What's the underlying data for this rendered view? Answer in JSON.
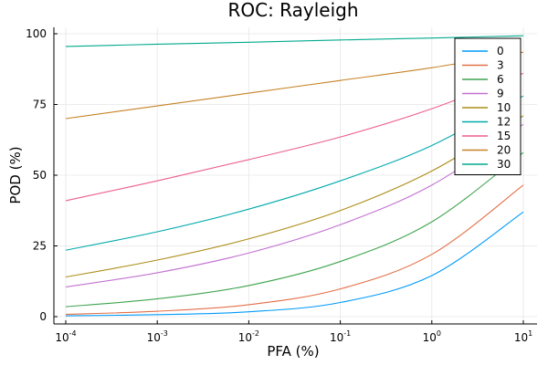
{
  "chart_data": {
    "type": "line",
    "title": "ROC: Rayleigh",
    "xlabel": "PFA (%)",
    "ylabel": "POD (%)",
    "x_scale": "log",
    "xlim": [
      0.0001,
      10
    ],
    "ylim": [
      0,
      100
    ],
    "x_ticks": [
      {
        "value": 0.0001,
        "base": "10",
        "exp": "-4"
      },
      {
        "value": 0.001,
        "base": "10",
        "exp": "-3"
      },
      {
        "value": 0.01,
        "base": "10",
        "exp": "-2"
      },
      {
        "value": 0.1,
        "base": "10",
        "exp": "-1"
      },
      {
        "value": 1,
        "base": "10",
        "exp": "0"
      },
      {
        "value": 10,
        "base": "10",
        "exp": "1"
      }
    ],
    "y_ticks": [
      0,
      25,
      50,
      75,
      100
    ],
    "grid": true,
    "legend_position": "top-right",
    "x": [
      0.0001,
      0.001,
      0.01,
      0.1,
      1,
      10
    ],
    "series": [
      {
        "name": "0",
        "color": "#009AFA",
        "values": [
          0.3,
          0.7,
          1.7,
          5.0,
          14.5,
          37.0
        ]
      },
      {
        "name": "3",
        "color": "#E36F47",
        "values": [
          0.8,
          1.9,
          4.2,
          9.8,
          22.0,
          46.5
        ]
      },
      {
        "name": "6",
        "color": "#3EA44E",
        "values": [
          3.5,
          6.3,
          11.0,
          19.5,
          33.5,
          58.0
        ]
      },
      {
        "name": "9",
        "color": "#C371D2",
        "values": [
          10.5,
          15.5,
          22.5,
          32.5,
          46.5,
          68.0
        ]
      },
      {
        "name": "10",
        "color": "#AC8D18",
        "values": [
          14.0,
          20.0,
          27.5,
          37.5,
          51.5,
          71.0
        ]
      },
      {
        "name": "12",
        "color": "#00A9AD",
        "values": [
          23.5,
          30.0,
          38.0,
          48.0,
          60.5,
          78.0
        ]
      },
      {
        "name": "15",
        "color": "#ED5D92",
        "values": [
          41.0,
          48.0,
          55.5,
          63.5,
          73.5,
          86.0
        ]
      },
      {
        "name": "20",
        "color": "#C68225",
        "values": [
          70.0,
          74.5,
          79.0,
          83.5,
          88.0,
          93.5
        ]
      },
      {
        "name": "30",
        "color": "#00A98D",
        "values": [
          95.5,
          96.3,
          97.0,
          97.8,
          98.5,
          99.3
        ]
      }
    ]
  }
}
